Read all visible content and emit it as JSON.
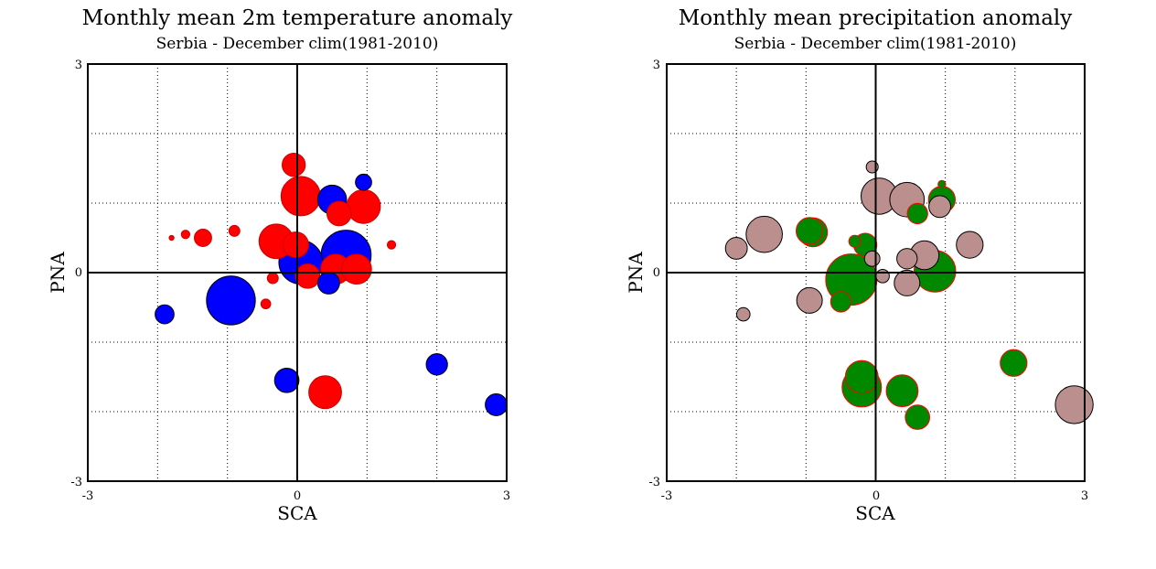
{
  "chart_data": [
    {
      "type": "scatter",
      "title": "Monthly mean 2m temperature anomaly",
      "subtitle": "Serbia - December  clim(1981-2010)",
      "xlabel": "SCA",
      "ylabel": "PNA",
      "xlim": [
        -3,
        3
      ],
      "ylim": [
        -3,
        3
      ],
      "x_ticks": [
        "-3",
        "0",
        "3"
      ],
      "y_ticks": [
        "-3",
        "0",
        "3"
      ],
      "grid": true,
      "encoding": "marker size = anomaly magnitude; color = sign",
      "colors": {
        "positive": "#ff0000",
        "negative": "#0000ff"
      },
      "points": [
        {
          "x": -1.9,
          "y": -0.6,
          "v": -0.3
        },
        {
          "x": -1.8,
          "y": 0.5,
          "v": 0.02
        },
        {
          "x": -1.6,
          "y": 0.55,
          "v": 0.06
        },
        {
          "x": -1.35,
          "y": 0.5,
          "v": 0.25
        },
        {
          "x": -0.9,
          "y": 0.6,
          "v": 0.1
        },
        {
          "x": -0.95,
          "y": -0.4,
          "v": -2.0
        },
        {
          "x": -0.45,
          "y": -0.45,
          "v": 0.08
        },
        {
          "x": -0.35,
          "y": -0.08,
          "v": 0.1
        },
        {
          "x": -0.3,
          "y": 0.45,
          "v": 1.0
        },
        {
          "x": -0.02,
          "y": 0.4,
          "v": 0.55
        },
        {
          "x": -0.15,
          "y": -1.55,
          "v": -0.5
        },
        {
          "x": 0.05,
          "y": 0.15,
          "v": -1.6
        },
        {
          "x": 0.15,
          "y": -0.05,
          "v": 0.5
        },
        {
          "x": -0.05,
          "y": 1.55,
          "v": 0.45
        },
        {
          "x": 0.05,
          "y": 1.1,
          "v": 1.3
        },
        {
          "x": 0.5,
          "y": 1.05,
          "v": -0.7
        },
        {
          "x": 0.6,
          "y": 0.85,
          "v": 0.5
        },
        {
          "x": 0.7,
          "y": 0.25,
          "v": -2.1
        },
        {
          "x": 0.55,
          "y": 0.05,
          "v": 0.75
        },
        {
          "x": 0.85,
          "y": 0.05,
          "v": 0.75
        },
        {
          "x": 0.45,
          "y": -0.15,
          "v": -0.4
        },
        {
          "x": 0.95,
          "y": 0.95,
          "v": 0.95
        },
        {
          "x": 0.95,
          "y": 1.3,
          "v": -0.22
        },
        {
          "x": 1.35,
          "y": 0.4,
          "v": 0.06
        },
        {
          "x": 0.4,
          "y": -1.72,
          "v": 0.9
        },
        {
          "x": 2.0,
          "y": -1.32,
          "v": -0.38
        },
        {
          "x": 2.85,
          "y": -1.9,
          "v": -0.4
        }
      ]
    },
    {
      "type": "scatter",
      "title": "Monthly mean precipitation anomaly",
      "subtitle": "Serbia - December  clim(1981-2010)",
      "xlabel": "SCA",
      "ylabel": "PNA",
      "xlim": [
        -3,
        3
      ],
      "ylim": [
        -3,
        3
      ],
      "x_ticks": [
        "-3",
        "0",
        "3"
      ],
      "y_ticks": [
        "-3",
        "0",
        "3"
      ],
      "grid": true,
      "encoding": "marker size = anomaly magnitude; color = sign",
      "colors": {
        "positive": "#008800",
        "negative": "#bc8f8f"
      },
      "points": [
        {
          "x": -2.0,
          "y": 0.35,
          "v": -0.4
        },
        {
          "x": -1.9,
          "y": -0.6,
          "v": -0.15
        },
        {
          "x": -1.6,
          "y": 0.55,
          "v": -1.1
        },
        {
          "x": -0.95,
          "y": 0.6,
          "v": 0.6
        },
        {
          "x": -0.9,
          "y": 0.58,
          "v": 0.7
        },
        {
          "x": -0.95,
          "y": -0.4,
          "v": -0.55
        },
        {
          "x": -0.5,
          "y": -0.42,
          "v": 0.35
        },
        {
          "x": -0.3,
          "y": 0.45,
          "v": 0.12
        },
        {
          "x": -0.15,
          "y": 0.4,
          "v": 0.45
        },
        {
          "x": -0.35,
          "y": -0.1,
          "v": 2.2
        },
        {
          "x": 0.05,
          "y": 1.1,
          "v": -1.1
        },
        {
          "x": -0.05,
          "y": 1.52,
          "v": -0.12
        },
        {
          "x": 0.1,
          "y": -0.05,
          "v": -0.15
        },
        {
          "x": -0.05,
          "y": 0.2,
          "v": -0.2
        },
        {
          "x": 0.45,
          "y": 0.2,
          "v": -0.35
        },
        {
          "x": 0.45,
          "y": -0.15,
          "v": -0.55
        },
        {
          "x": 0.45,
          "y": 1.05,
          "v": -1.0
        },
        {
          "x": 0.6,
          "y": 0.85,
          "v": 0.35
        },
        {
          "x": 0.7,
          "y": 0.25,
          "v": -0.7
        },
        {
          "x": 0.85,
          "y": 0.02,
          "v": 1.45
        },
        {
          "x": 0.95,
          "y": 1.05,
          "v": 0.6
        },
        {
          "x": 0.92,
          "y": 0.95,
          "v": -0.4
        },
        {
          "x": 0.95,
          "y": 1.27,
          "v": 0.05
        },
        {
          "x": 1.35,
          "y": 0.4,
          "v": -0.6
        },
        {
          "x": -0.2,
          "y": -1.65,
          "v": 1.3
        },
        {
          "x": -0.2,
          "y": -1.5,
          "v": 0.9
        },
        {
          "x": 0.38,
          "y": -1.7,
          "v": 0.85
        },
        {
          "x": 0.6,
          "y": -2.08,
          "v": 0.5
        },
        {
          "x": 1.98,
          "y": -1.3,
          "v": 0.6
        },
        {
          "x": 2.85,
          "y": -1.9,
          "v": -1.2
        }
      ]
    }
  ]
}
